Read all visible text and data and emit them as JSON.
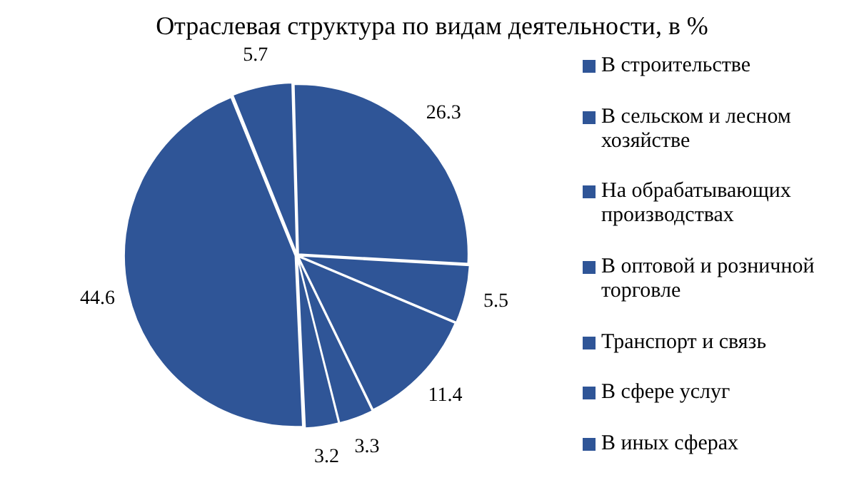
{
  "chart_data": {
    "type": "pie",
    "title": "Отраслевая структура по видам деятельности, в %",
    "categories": [
      "В строительстве",
      "В сельском и лесном хозяйстве",
      "На обрабатывающих производствах",
      "В оптовой и розничной торговле",
      "Транспорт и связь",
      "В сфере услуг",
      "В иных сферах"
    ],
    "values": [
      5.7,
      26.3,
      5.5,
      11.4,
      3.3,
      3.2,
      44.6
    ],
    "colors": [
      "#2f5597",
      "#2f5597",
      "#2f5597",
      "#2f5597",
      "#2f5597",
      "#2f5597",
      "#2f5597"
    ],
    "data_labels": true,
    "legend": "right"
  }
}
